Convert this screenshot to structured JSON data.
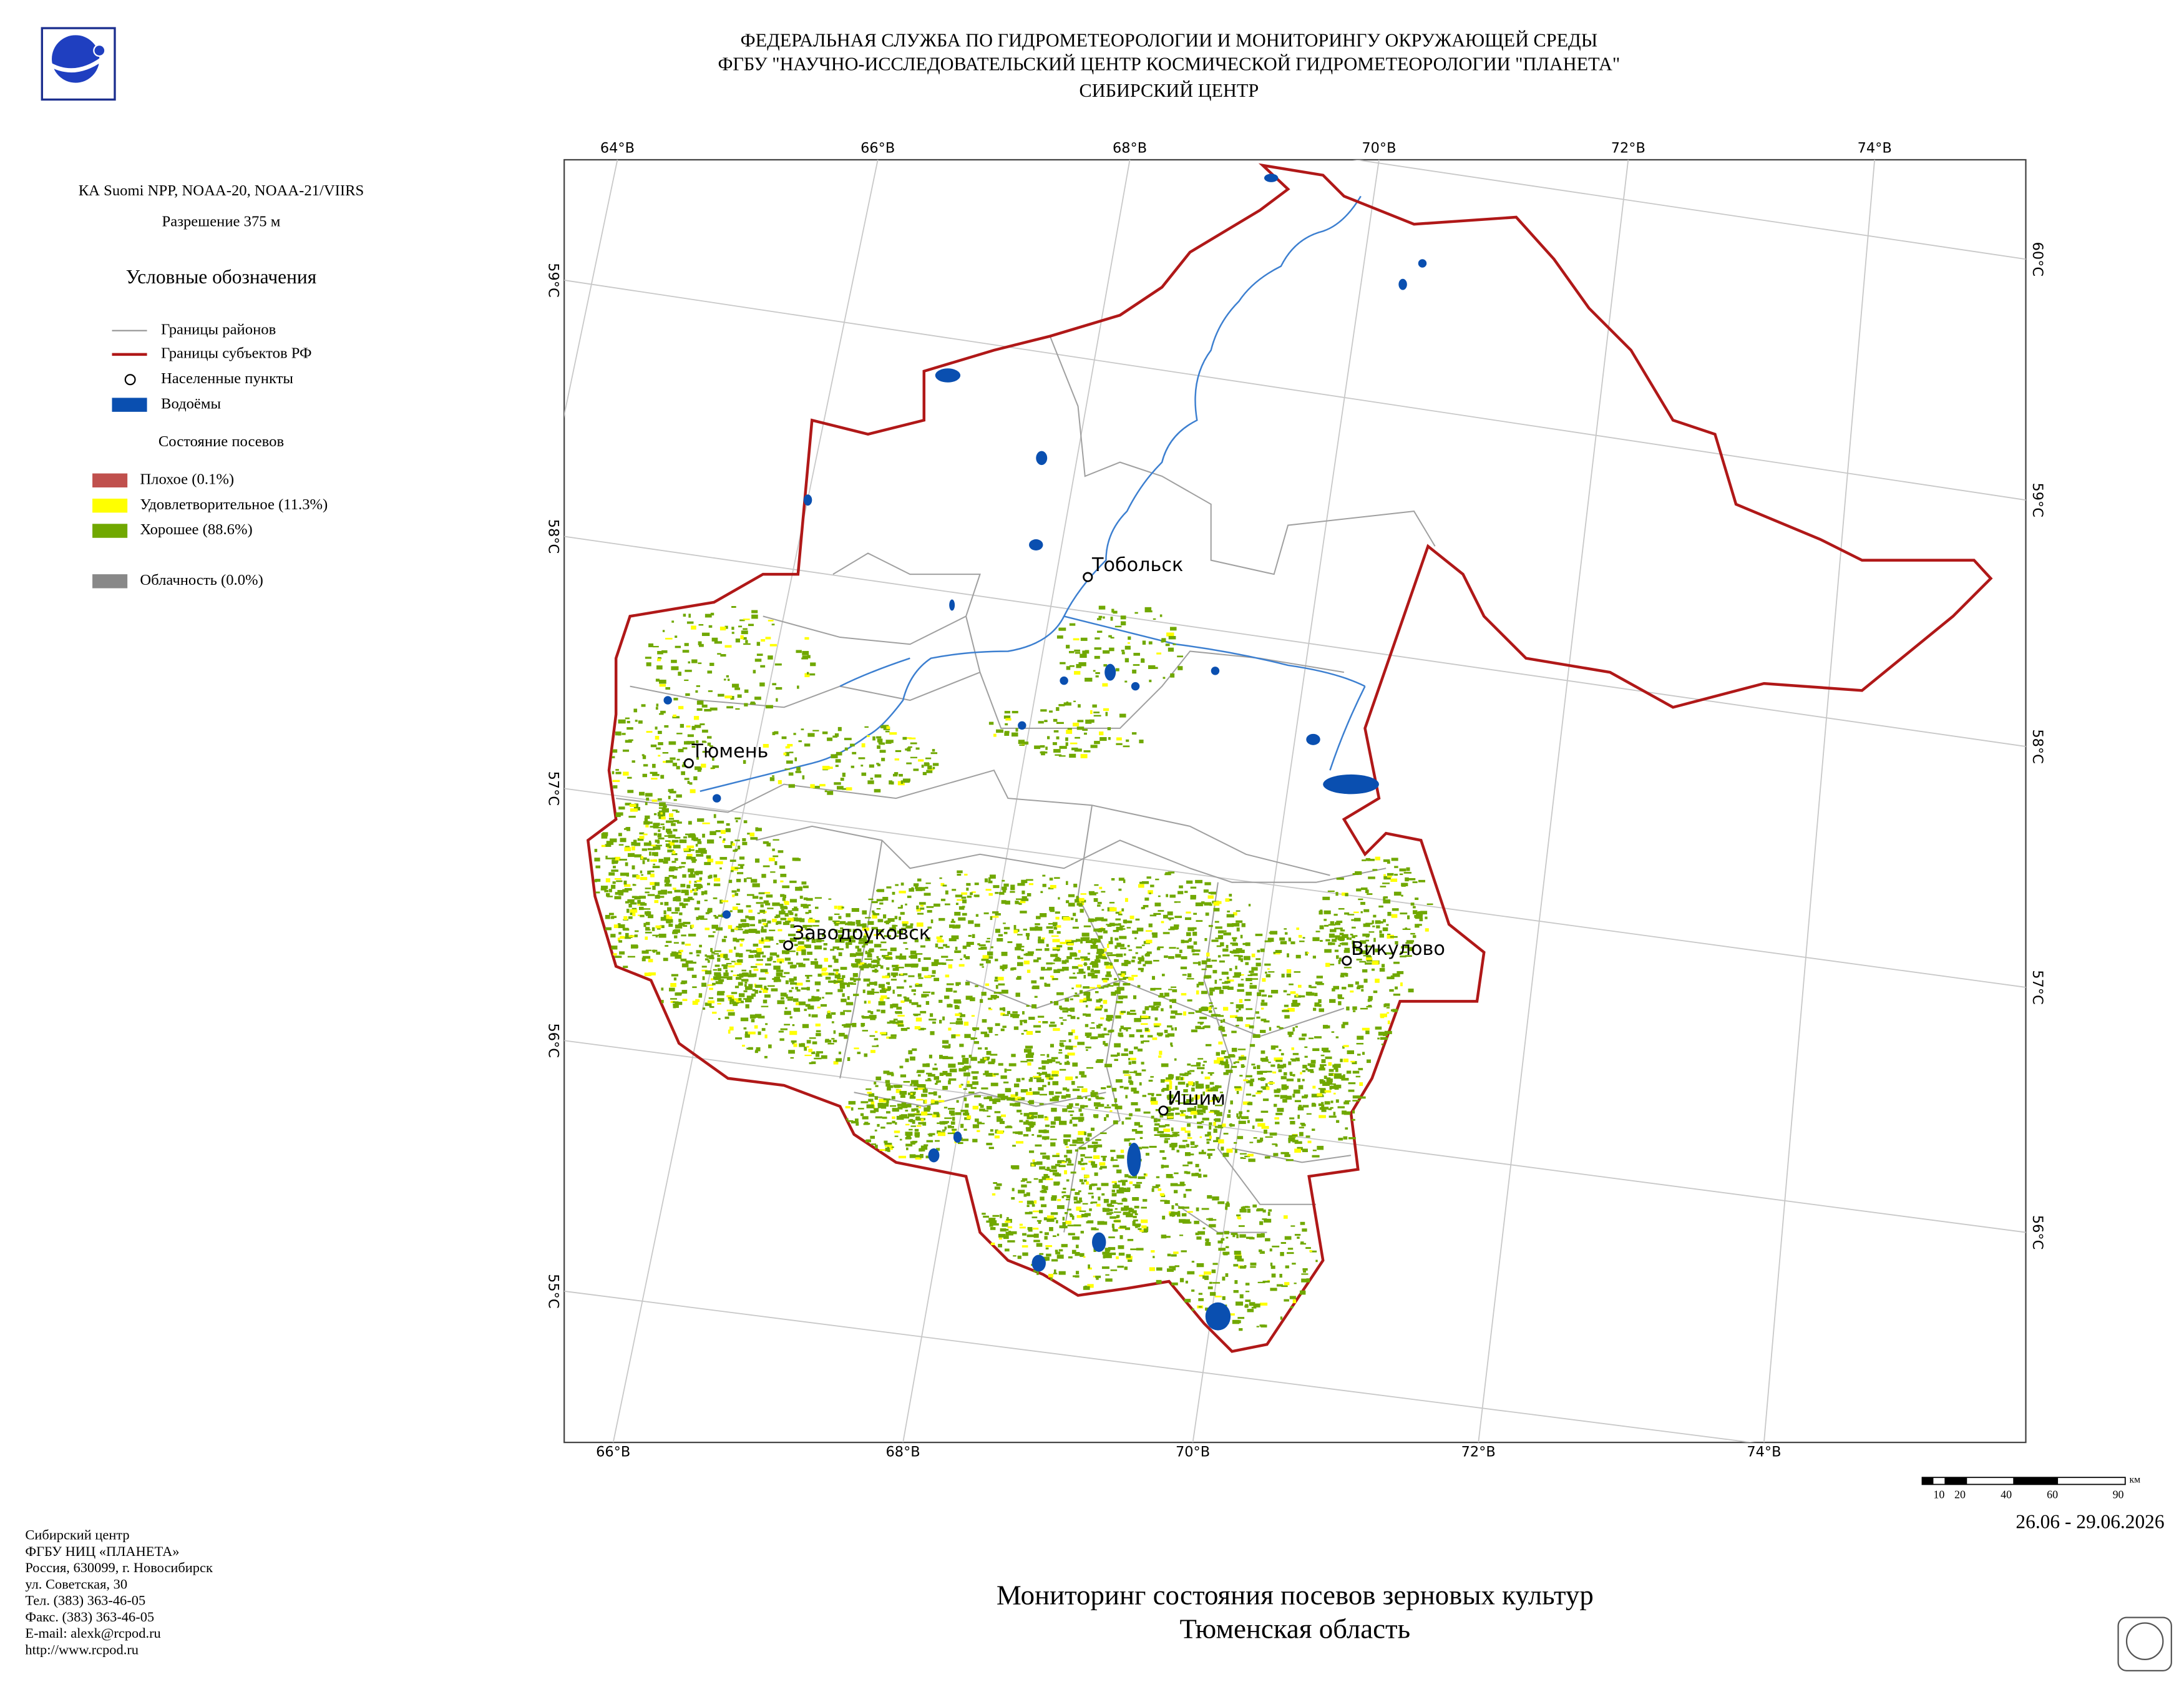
{
  "header": {
    "lines": [
      "ФЕДЕРАЛЬНАЯ СЛУЖБА ПО ГИДРОМЕТЕОРОЛОГИИ И МОНИТОРИНГУ ОКРУЖАЮЩЕЙ СРЕДЫ",
      "ФГБУ \"НАУЧНО-ИССЛЕДОВАТЕЛЬСКИЙ ЦЕНТР КОСМИЧЕСКОЙ ГИДРОМЕТЕОРОЛОГИИ \"ПЛАНЕТА\"",
      "СИБИРСКИЙ ЦЕНТР"
    ]
  },
  "info": {
    "satellite": "КА Suomi NPP, NOAA-20, NOAA-21/VIIRS",
    "resolution": "Разрешение 375 м"
  },
  "legend": {
    "title": "Условные обозначения",
    "items": [
      "Границы районов",
      "Границы субъектов РФ",
      "Населенные пункты",
      "Водоёмы"
    ],
    "crops_title": "Состояние посевов",
    "crop_items": [
      "Плохое (0.1%)",
      "Удовлетворительное (11.3%)",
      "Хорошее (88.6%)"
    ],
    "cloud": "Облачность (0.0%)"
  },
  "map": {
    "top_lon": [
      "64°В",
      "66°В",
      "68°В",
      "70°В",
      "72°В",
      "74°В"
    ],
    "bottom_lon": [
      "66°В",
      "68°В",
      "70°В",
      "72°В",
      "74°В"
    ],
    "left_lat": [
      "59°С",
      "58°С",
      "57°С",
      "56°С",
      "55°С"
    ],
    "right_lat": [
      "60°С",
      "59°С",
      "58°С",
      "57°С",
      "56°С"
    ],
    "cities": [
      "Тобольск",
      "Тюмень",
      "Заводоуковск",
      "Викулово",
      "Ишим"
    ],
    "scale": {
      "ticks": [
        "10",
        "20",
        "40",
        "60",
        "90"
      ],
      "unit": "км"
    },
    "date": "26.06 - 29.06.2026"
  },
  "title": {
    "lines": [
      "Мониторинг состояния посевов зерновых культур",
      "Тюменская область"
    ]
  },
  "footer": {
    "lines": [
      "Сибирский центр",
      "ФГБУ НИЦ «ПЛАНЕТА»",
      "Россия, 630099, г. Новосибирск",
      "ул. Советская, 30",
      "Тел. (383) 363-46-05",
      "Факс. (383) 363-46-05",
      "E-mail: alexk@rcpod.ru",
      "http://www.rcpod.ru"
    ]
  }
}
